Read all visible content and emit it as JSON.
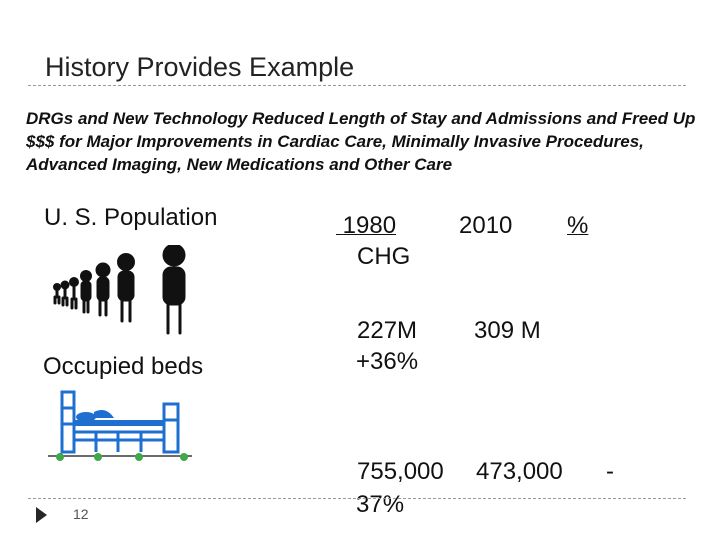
{
  "slide": {
    "title": "History Provides Example",
    "subtitle": "DRGs and New Technology Reduced Length of Stay and Admissions and Freed Up $$$ for Major Improvements in Cardiac Care, Minimally Invasive Procedures,  Advanced Imaging, New Medications and Other Care",
    "population_label": "U. S. Population",
    "beds_label": "Occupied beds",
    "page_number": "12"
  },
  "table": {
    "header_col1": "1980",
    "header_col2": "2010",
    "header_col3": "%",
    "header_chg": "CHG",
    "population_1980": "227M",
    "population_2010": "309 M",
    "population_chg": "+36%",
    "beds_1980": "755,000",
    "beds_2010": "473,000",
    "beds_dash": "-",
    "beds_chg": "37%"
  },
  "icons": {
    "population": "people-growing-icon",
    "beds": "hospital-bed-icon",
    "bullet": "triangle-bullet-icon"
  },
  "colors": {
    "bed_blue": "#1f6fd1",
    "bed_wheel": "#3fa84a",
    "rule": "#9a9a9a"
  }
}
